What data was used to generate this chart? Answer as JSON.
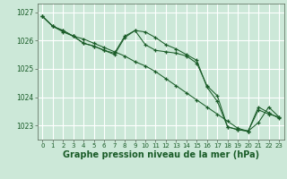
{
  "background_color": "#cce8d8",
  "grid_color": "#ffffff",
  "line_color": "#1a5c28",
  "xlabel": "Graphe pression niveau de la mer (hPa)",
  "xlabel_fontsize": 7,
  "xlim": [
    -0.5,
    23.5
  ],
  "ylim": [
    1022.5,
    1027.3
  ],
  "yticks": [
    1023,
    1024,
    1025,
    1026,
    1027
  ],
  "xticks": [
    0,
    1,
    2,
    3,
    4,
    5,
    6,
    7,
    8,
    9,
    10,
    11,
    12,
    13,
    14,
    15,
    16,
    17,
    18,
    19,
    20,
    21,
    22,
    23
  ],
  "series1": [
    1026.85,
    1026.5,
    1026.3,
    1026.15,
    1026.05,
    1025.9,
    1025.75,
    1025.6,
    1025.45,
    1025.25,
    1025.1,
    1024.9,
    1024.65,
    1024.4,
    1024.15,
    1023.9,
    1023.65,
    1023.4,
    1023.15,
    1022.9,
    1022.8,
    1023.55,
    1023.4,
    1023.3
  ],
  "series2": [
    1026.85,
    1026.5,
    1026.35,
    1026.15,
    1025.9,
    1025.8,
    1025.65,
    1025.55,
    1026.15,
    1026.35,
    1026.3,
    1026.1,
    1025.85,
    1025.7,
    1025.5,
    1025.3,
    1024.35,
    1023.85,
    1022.95,
    1022.85,
    1022.8,
    1023.1,
    1023.65,
    1023.3
  ],
  "series3": [
    1026.85,
    1026.5,
    1026.35,
    1026.15,
    1025.9,
    1025.8,
    1025.65,
    1025.5,
    1026.1,
    1026.35,
    1025.85,
    1025.65,
    1025.6,
    1025.55,
    1025.45,
    1025.2,
    1024.4,
    1024.05,
    1022.95,
    1022.85,
    1022.8,
    1023.65,
    1023.45,
    1023.25
  ]
}
